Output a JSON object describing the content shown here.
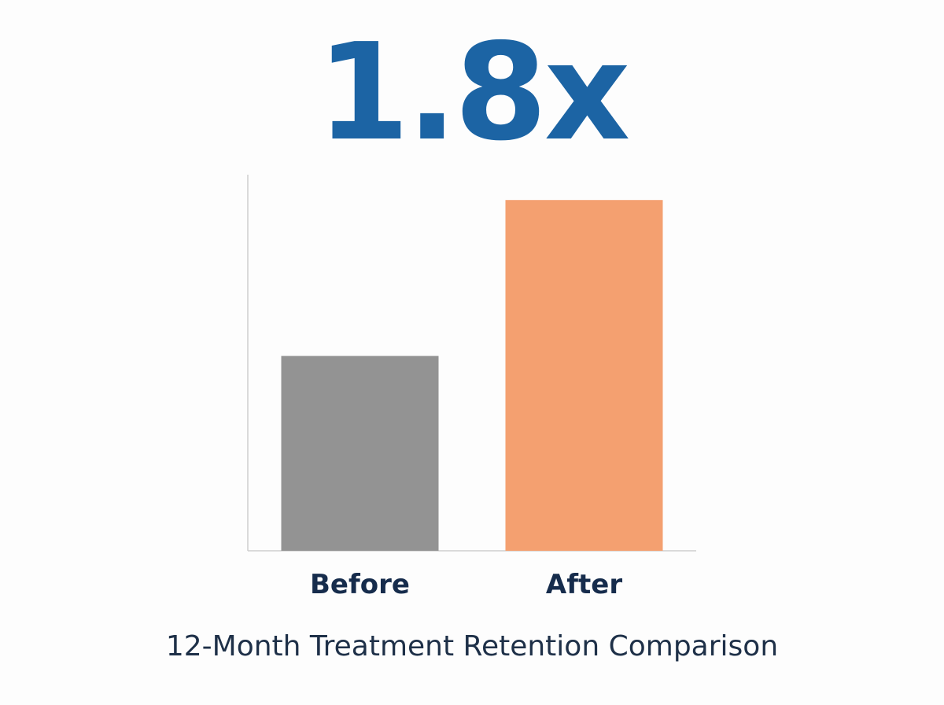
{
  "headline": {
    "text": "1.8x",
    "color": "#1c64a4"
  },
  "caption": {
    "text": "12-Month Treatment Retention Comparison",
    "color": "#1e3048"
  },
  "chart_data": {
    "type": "bar",
    "title": "",
    "xlabel": "",
    "ylabel": "",
    "categories": [
      "Before",
      "After"
    ],
    "values": [
      1.0,
      1.8
    ],
    "ylim": [
      0,
      1.93
    ],
    "colors": [
      "#939393",
      "#f4a070"
    ],
    "label_color": "#162c4c",
    "axis_color": "#cfcfcf",
    "grid": false,
    "legend": "none"
  }
}
